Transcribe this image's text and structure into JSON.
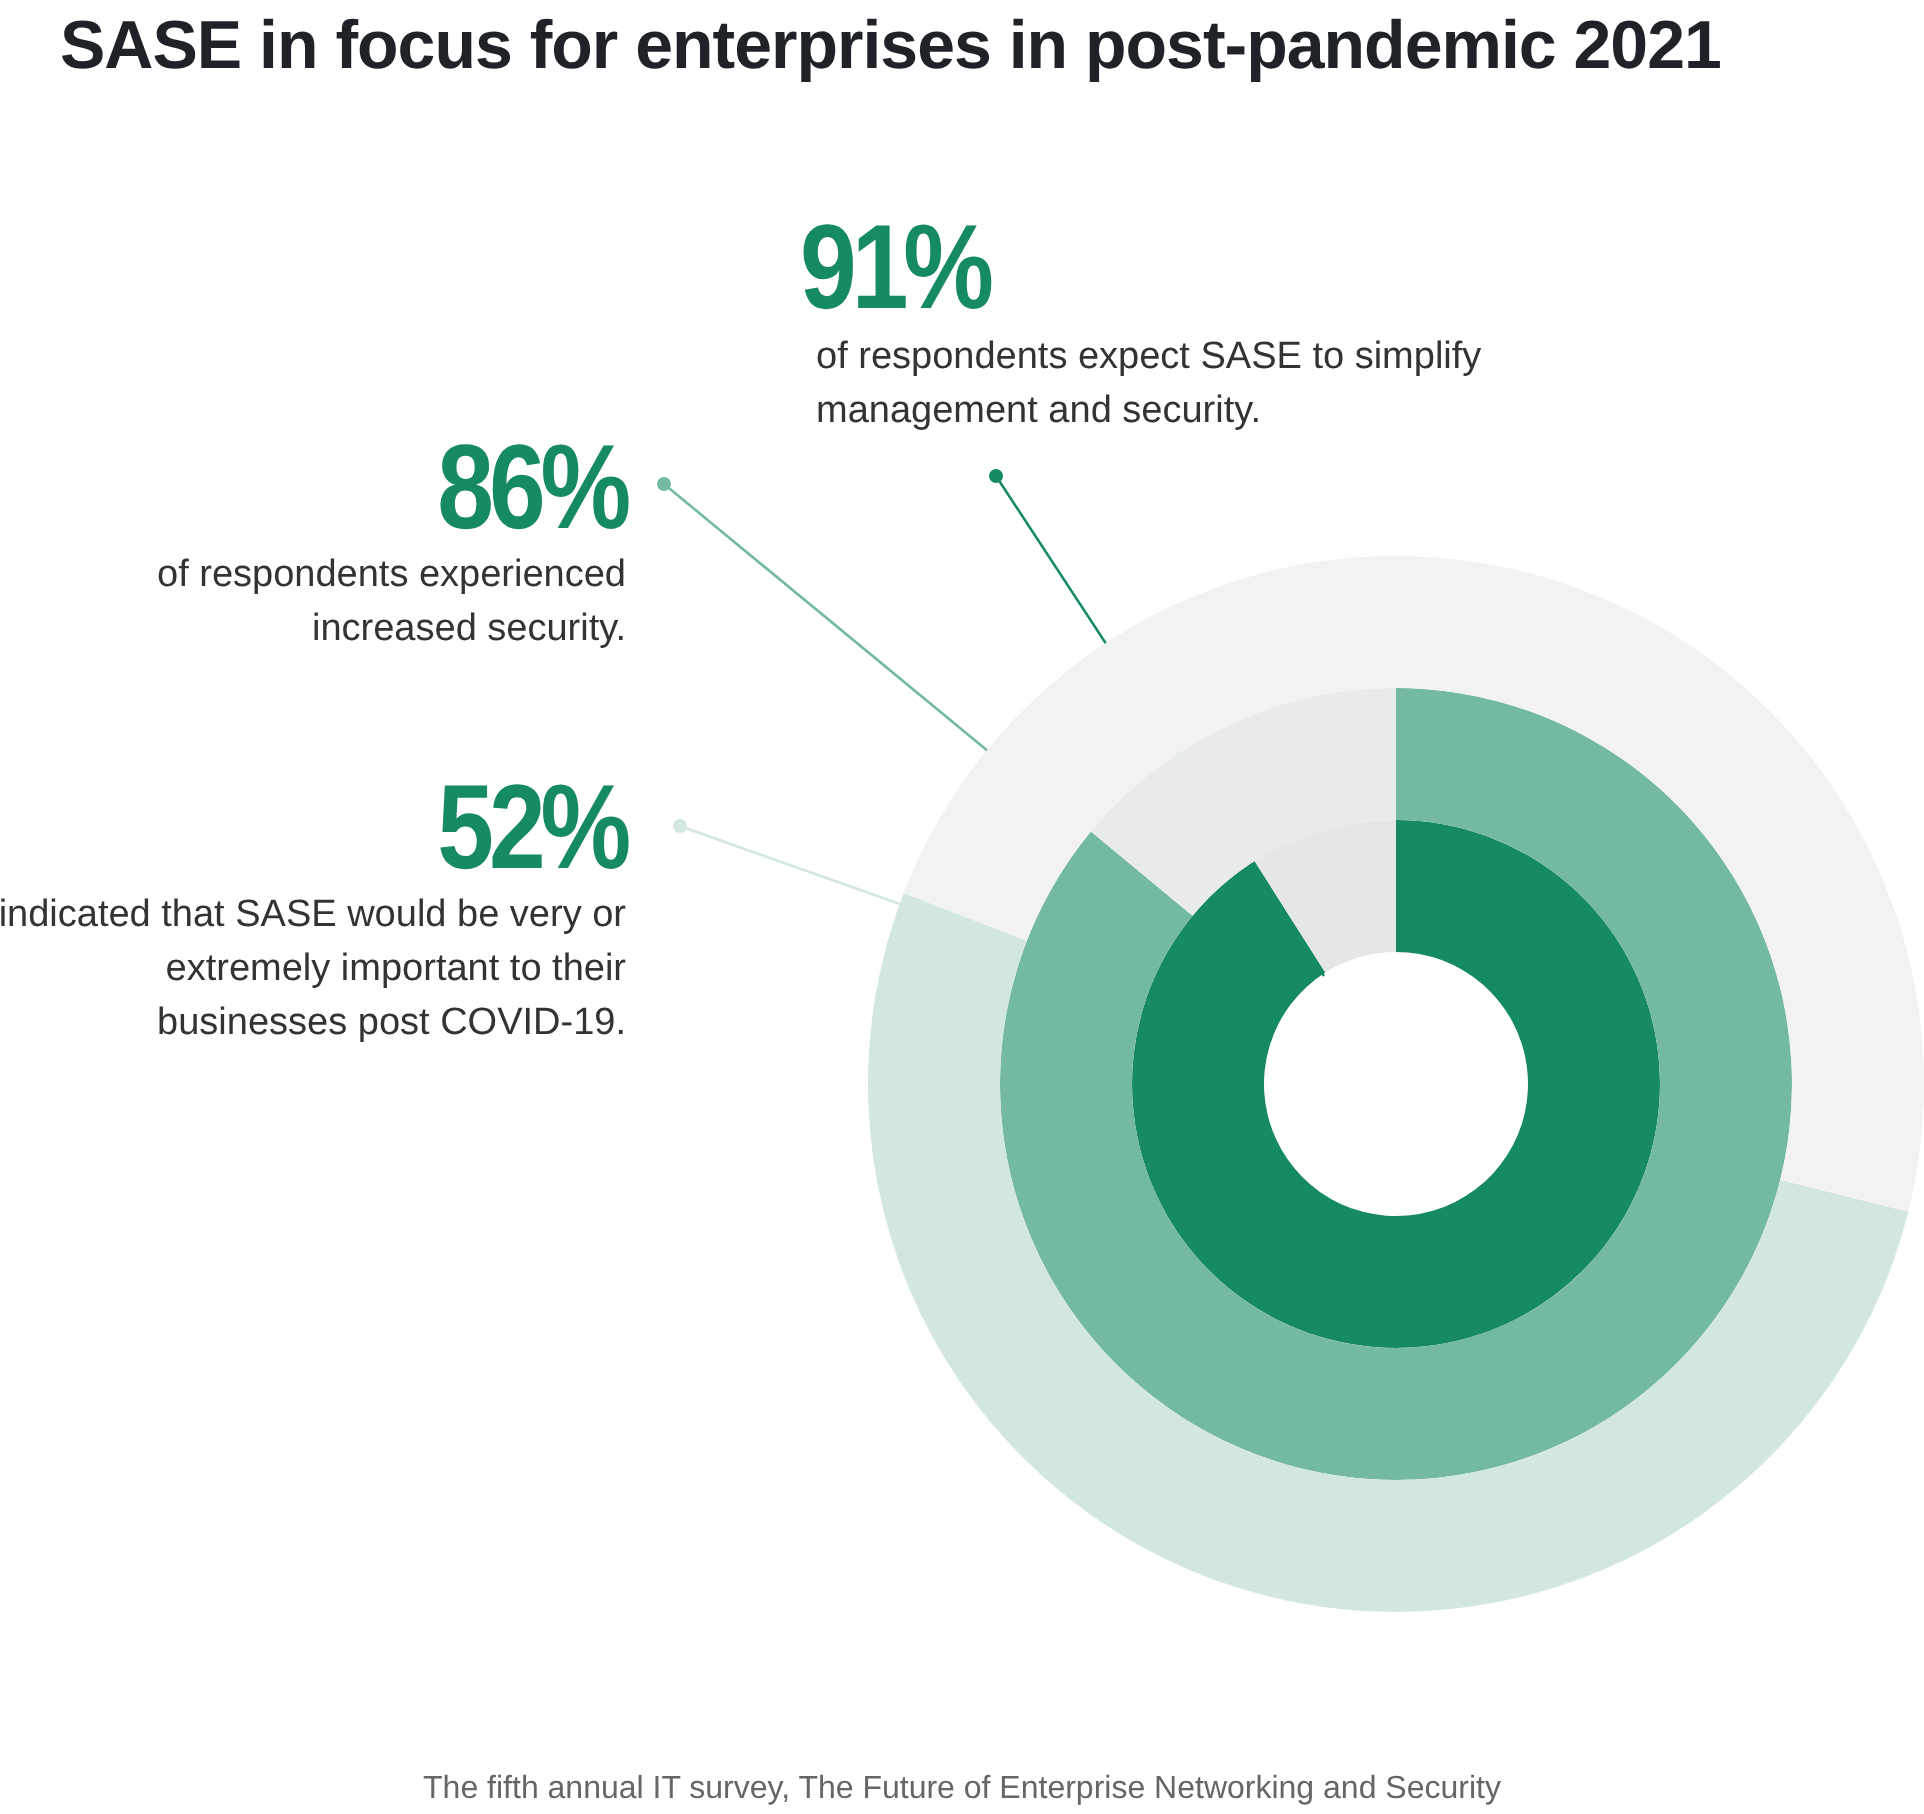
{
  "chart_data": {
    "type": "donut",
    "title": "SASE in focus for enterprises in post-pandemic 2021",
    "categories": [
      null,
      null
    ],
    "series": [
      {
        "values": [
          91,
          9
        ],
        "colors": [
          "#168a62",
          "#e4e6e8"
        ],
        "value_labels": [
          "91%",
          null
        ]
      },
      {
        "values": [
          86,
          14
        ],
        "colors": [
          "#74b9a2",
          "#e9eaeb"
        ],
        "value_labels": [
          "86%",
          null
        ]
      },
      {
        "values": [
          52,
          48
        ],
        "colors": [
          "#d2e7df",
          "#f2f2f2"
        ],
        "value_labels": [
          "52%",
          null
        ]
      }
    ],
    "annotations": [
      "of respondents expect SASE to simplify management and security.",
      "of respondents experienced increased security.",
      "indicated that SASE would be very or extremely important to their businesses post COVID-19.",
      "The fifth annual IT survey, The Future of Enterprise Networking and Security"
    ],
    "legend": false
  }
}
